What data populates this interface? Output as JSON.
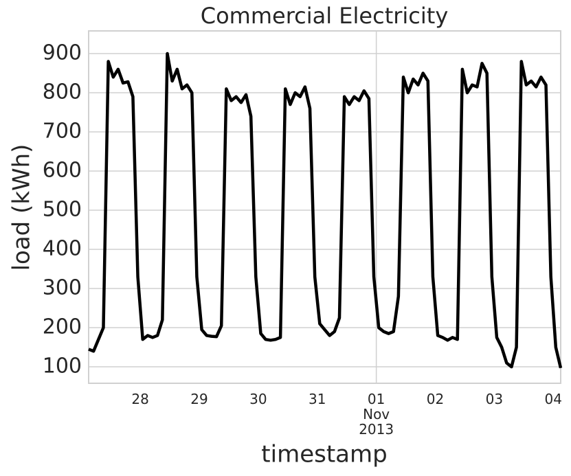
{
  "chart_data": {
    "type": "line",
    "title": "Commercial Electricity",
    "x_label": "timestamp",
    "y_label": "load (kWh)",
    "x": [
      "2013-10-27T03:00",
      "2013-10-27T05:00",
      "2013-10-27T07:00",
      "2013-10-27T09:00",
      "2013-10-27T11:00",
      "2013-10-27T13:00",
      "2013-10-27T15:00",
      "2013-10-27T17:00",
      "2013-10-27T19:00",
      "2013-10-27T21:00",
      "2013-10-27T23:00",
      "2013-10-28T01:00",
      "2013-10-28T03:00",
      "2013-10-28T05:00",
      "2013-10-28T07:00",
      "2013-10-28T09:00",
      "2013-10-28T11:00",
      "2013-10-28T13:00",
      "2013-10-28T15:00",
      "2013-10-28T17:00",
      "2013-10-28T19:00",
      "2013-10-28T21:00",
      "2013-10-28T23:00",
      "2013-10-29T01:00",
      "2013-10-29T03:00",
      "2013-10-29T05:00",
      "2013-10-29T07:00",
      "2013-10-29T09:00",
      "2013-10-29T11:00",
      "2013-10-29T13:00",
      "2013-10-29T15:00",
      "2013-10-29T17:00",
      "2013-10-29T19:00",
      "2013-10-29T21:00",
      "2013-10-29T23:00",
      "2013-10-30T01:00",
      "2013-10-30T03:00",
      "2013-10-30T05:00",
      "2013-10-30T07:00",
      "2013-10-30T09:00",
      "2013-10-30T11:00",
      "2013-10-30T13:00",
      "2013-10-30T15:00",
      "2013-10-30T17:00",
      "2013-10-30T19:00",
      "2013-10-30T21:00",
      "2013-10-30T23:00",
      "2013-10-31T01:00",
      "2013-10-31T03:00",
      "2013-10-31T05:00",
      "2013-10-31T07:00",
      "2013-10-31T09:00",
      "2013-10-31T11:00",
      "2013-10-31T13:00",
      "2013-10-31T15:00",
      "2013-10-31T17:00",
      "2013-10-31T19:00",
      "2013-10-31T21:00",
      "2013-10-31T23:00",
      "2013-11-01T01:00",
      "2013-11-01T03:00",
      "2013-11-01T05:00",
      "2013-11-01T07:00",
      "2013-11-01T09:00",
      "2013-11-01T11:00",
      "2013-11-01T13:00",
      "2013-11-01T15:00",
      "2013-11-01T17:00",
      "2013-11-01T19:00",
      "2013-11-01T21:00",
      "2013-11-01T23:00",
      "2013-11-02T01:00",
      "2013-11-02T03:00",
      "2013-11-02T05:00",
      "2013-11-02T07:00",
      "2013-11-02T09:00",
      "2013-11-02T11:00",
      "2013-11-02T13:00",
      "2013-11-02T15:00",
      "2013-11-02T17:00",
      "2013-11-02T19:00",
      "2013-11-02T21:00",
      "2013-11-02T23:00",
      "2013-11-03T01:00",
      "2013-11-03T03:00",
      "2013-11-03T05:00",
      "2013-11-03T07:00",
      "2013-11-03T09:00",
      "2013-11-03T11:00",
      "2013-11-03T13:00",
      "2013-11-03T15:00",
      "2013-11-03T17:00",
      "2013-11-03T19:00",
      "2013-11-03T21:00",
      "2013-11-03T23:00",
      "2013-11-04T01:00",
      "2013-11-04T03:00"
    ],
    "series": [
      {
        "name": "load",
        "color": "#000000",
        "values": [
          145,
          140,
          170,
          200,
          880,
          840,
          860,
          825,
          828,
          790,
          330,
          170,
          180,
          175,
          180,
          220,
          900,
          830,
          860,
          810,
          820,
          800,
          330,
          195,
          180,
          178,
          177,
          205,
          810,
          780,
          790,
          775,
          795,
          740,
          330,
          185,
          170,
          168,
          170,
          175,
          810,
          770,
          800,
          790,
          815,
          760,
          330,
          210,
          195,
          180,
          190,
          225,
          790,
          770,
          790,
          780,
          805,
          785,
          330,
          200,
          190,
          185,
          190,
          280,
          840,
          800,
          835,
          820,
          850,
          830,
          330,
          180,
          175,
          168,
          175,
          170,
          860,
          800,
          820,
          815,
          875,
          850,
          330,
          175,
          150,
          110,
          100,
          150,
          880,
          820,
          830,
          815,
          840,
          820,
          330,
          150,
          97
        ]
      }
    ],
    "xlim": [
      "2013-10-27T03:00",
      "2013-11-04T03:00"
    ],
    "xticks": [
      {
        "value": "2013-10-28T00:00",
        "label": "28"
      },
      {
        "value": "2013-10-29T00:00",
        "label": "29"
      },
      {
        "value": "2013-10-30T00:00",
        "label": "30"
      },
      {
        "value": "2013-10-31T00:00",
        "label": "31"
      },
      {
        "value": "2013-11-01T00:00",
        "label": "01\nNov\n2013"
      },
      {
        "value": "2013-11-02T00:00",
        "label": "02"
      },
      {
        "value": "2013-11-03T00:00",
        "label": "03"
      },
      {
        "value": "2013-11-04T00:00",
        "label": "04"
      }
    ],
    "ylim": [
      58,
      958
    ],
    "yticks": [
      100,
      200,
      300,
      400,
      500,
      600,
      700,
      800,
      900
    ],
    "grid": true
  }
}
